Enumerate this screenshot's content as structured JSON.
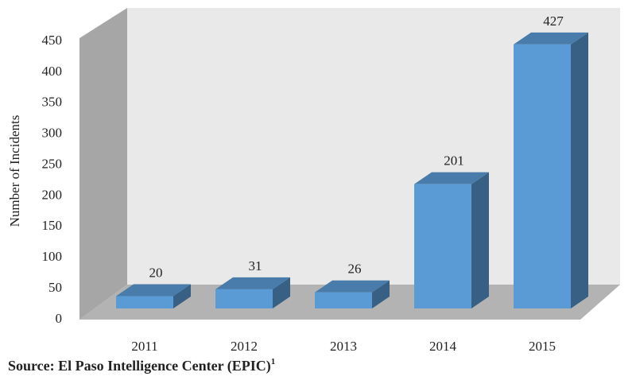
{
  "chart_data": {
    "type": "bar3d",
    "categories": [
      "2011",
      "2012",
      "2013",
      "2014",
      "2015"
    ],
    "values": [
      20,
      31,
      26,
      201,
      427
    ],
    "color": "#5b9bd5",
    "ylabel": "Number of Incidents",
    "ylim": [
      0,
      450
    ],
    "yticks": [
      0,
      50,
      100,
      150,
      200,
      250,
      300,
      350,
      400,
      450
    ],
    "source": "Source:  El Paso Intelligence Center (EPIC)",
    "source_sup": "1"
  }
}
